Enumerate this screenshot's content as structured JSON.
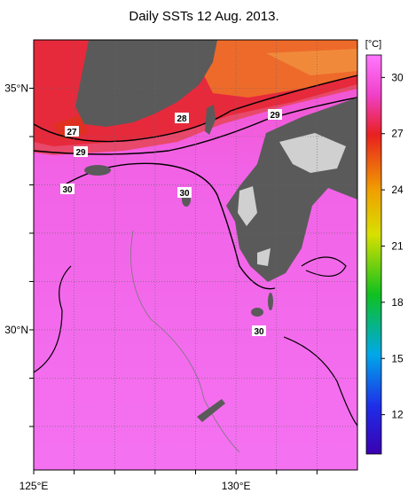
{
  "title": "Daily SSTs 12 Aug. 2013.",
  "map": {
    "xlim": [
      125,
      133
    ],
    "ylim": [
      27.1,
      36
    ],
    "xticks": [
      {
        "value": 125,
        "label": "125°E"
      },
      {
        "value": 126,
        "label": null
      },
      {
        "value": 127,
        "label": null
      },
      {
        "value": 128,
        "label": null
      },
      {
        "value": 129,
        "label": null
      },
      {
        "value": 130,
        "label": "130°E"
      },
      {
        "value": 131,
        "label": null
      },
      {
        "value": 132,
        "label": null
      }
    ],
    "yticks": [
      {
        "value": 28,
        "label": null
      },
      {
        "value": 29,
        "label": null
      },
      {
        "value": 30,
        "label": "30°N"
      },
      {
        "value": 31,
        "label": null
      },
      {
        "value": 32,
        "label": null
      },
      {
        "value": 33,
        "label": null
      },
      {
        "value": 34,
        "label": null
      },
      {
        "value": 35,
        "label": "35°N"
      }
    ],
    "contour_labels": [
      27,
      28,
      29,
      29,
      30,
      30,
      30
    ]
  },
  "colorbar": {
    "unit": "[°C]",
    "ylim": [
      9.9,
      31.2
    ],
    "yticks": [
      12,
      15,
      18,
      21,
      24,
      27,
      30
    ]
  }
}
